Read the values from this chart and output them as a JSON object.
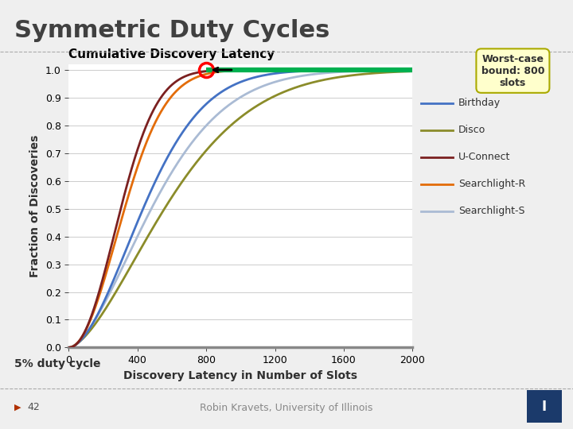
{
  "title": "Symmetric Duty Cycles",
  "chart_title": "Cumulative Discovery Latency",
  "xlabel": "Discovery Latency in Number of Slots",
  "ylabel": "Fraction of Discoveries",
  "xlim": [
    0,
    2000
  ],
  "ylim": [
    0,
    1.0
  ],
  "xticks": [
    0,
    400,
    800,
    1200,
    1600,
    2000
  ],
  "yticks": [
    0,
    0.1,
    0.2,
    0.3,
    0.4,
    0.5,
    0.6,
    0.7,
    0.8,
    0.9,
    1
  ],
  "annotation_text": "Worst-case\nbound: 800\nslots",
  "footnote": "5% duty cycle",
  "bottom_left": "42",
  "bottom_center": "Robin Kravets, University of Illinois",
  "lines": {
    "Birthday": {
      "color": "#4472C4"
    },
    "Disco": {
      "color": "#8B8C2A"
    },
    "U-Connect": {
      "color": "#7B2020"
    },
    "Searchlight-R": {
      "color": "#E36C09"
    },
    "Searchlight-S": {
      "color": "#AABBD4"
    }
  },
  "worst_case_color": "#00B050",
  "slide_bg": "#EFEFEF",
  "plot_bg": "#FFFFFF",
  "title_color": "#404040",
  "grid_color": "#CCCCCC"
}
